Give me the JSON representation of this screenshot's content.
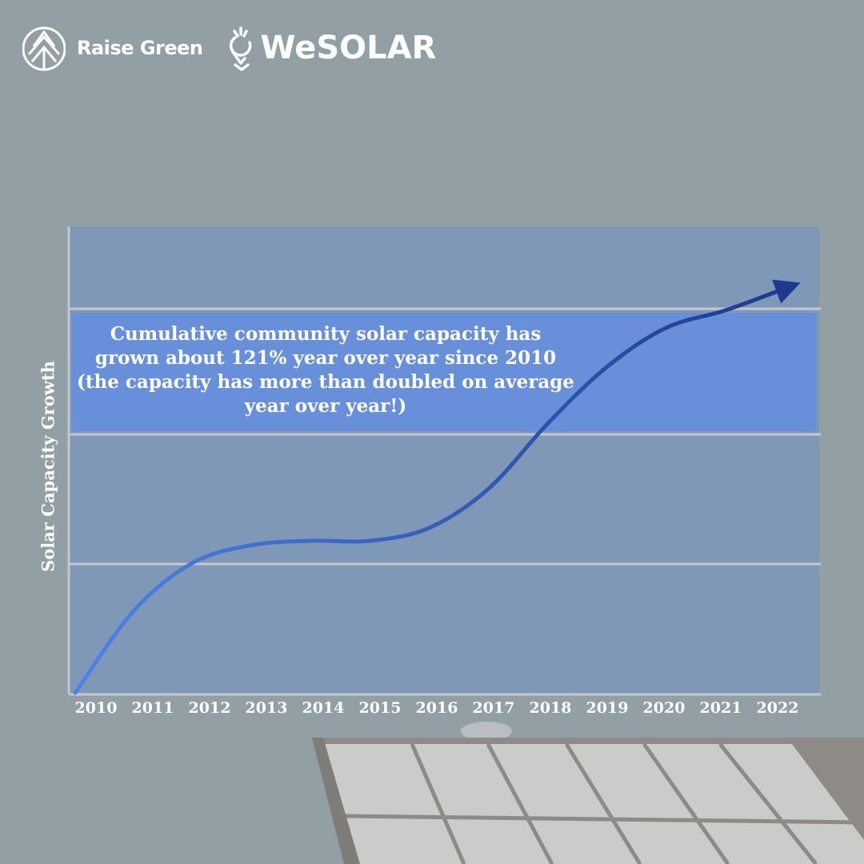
{
  "brand": {
    "raise_green": {
      "name": "Raise Green",
      "icon": "raise-green-leaf-icon"
    },
    "wesolar": {
      "name": "WeSOLAR",
      "icon": "wesolar-pin-icon"
    }
  },
  "colors": {
    "background": "#929fa5",
    "plot_band": "#7f98b8",
    "highlight_band": "#6890da",
    "line_start": "#4f82e6",
    "line_end": "#1e3a8e",
    "text": "#ffffff"
  },
  "chart_data": {
    "type": "line",
    "title": "",
    "xlabel": "",
    "ylabel": "Solar Capacity Growth",
    "x": [
      "2010",
      "2011",
      "2012",
      "2013",
      "2014",
      "2015",
      "2016",
      "2017",
      "2018",
      "2019",
      "2020",
      "2021",
      "2022"
    ],
    "y_relative": [
      0.0,
      0.19,
      0.3,
      0.34,
      0.35,
      0.35,
      0.38,
      0.47,
      0.62,
      0.75,
      0.84,
      0.88,
      0.93
    ],
    "y_ticks_shown": false,
    "grid": "horizontal",
    "arrow_at_end": true,
    "annotation": "Cumulative community solar capacity has grown about 121% year over year since 2010 (the capacity has more than doubled on average year over year!)"
  }
}
